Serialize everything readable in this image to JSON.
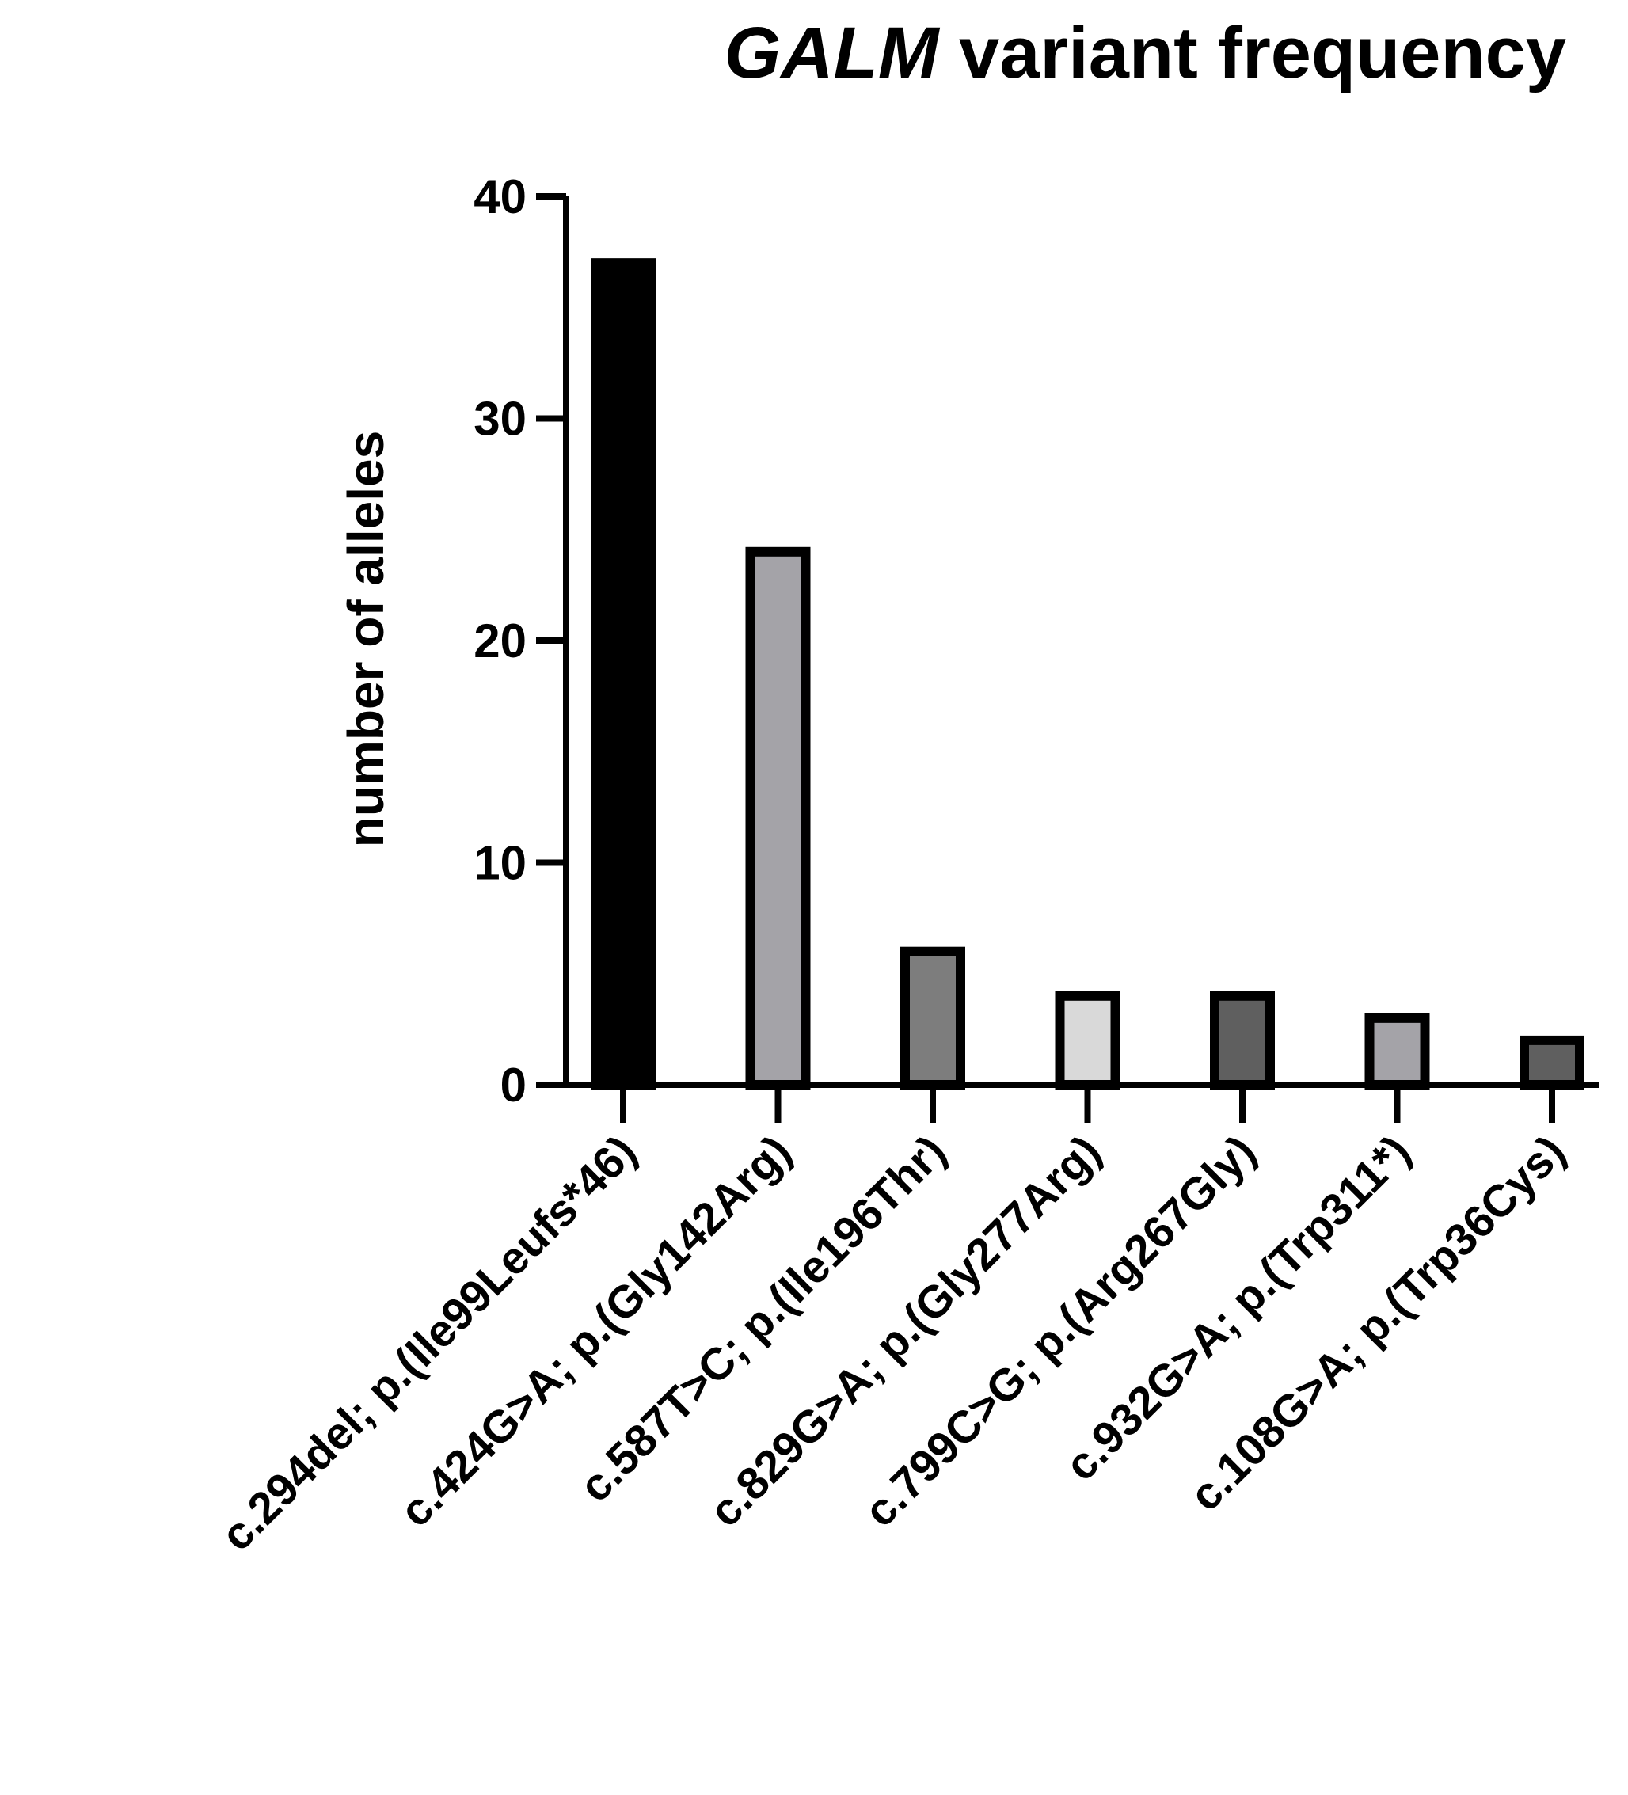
{
  "chart_data": {
    "type": "bar",
    "title_italic": "GALM",
    "title_rest": " variant frequency",
    "ylabel": "number of alleles",
    "xlabel": "",
    "ylim": [
      0,
      40
    ],
    "yticks": [
      0,
      10,
      20,
      30,
      40
    ],
    "ytick_labels": [
      "0",
      "10",
      "20",
      "30",
      "40"
    ],
    "grid": false,
    "legend": false,
    "categories": [
      "c.294del; p.(Ile99Leufs*46)",
      "c.424G>A; p.(Gly142Arg)",
      "c.587T>C; p.(Ile196Thr)",
      "c.829G>A; p.(Gly277Arg)",
      "c.799C>G; p.(Arg267Gly)",
      "c.932G>A; p.(Trp311*)",
      "c.108G>A; p.(Trp36Cys)"
    ],
    "values": [
      37,
      24,
      6,
      4,
      4,
      3,
      2
    ],
    "bar_colors": [
      "#000000",
      "#a4a3a8",
      "#7d7d7d",
      "#d9d9d9",
      "#5f5f5f",
      "#a4a3a8",
      "#5f5f5f"
    ],
    "edge_color": "#000000"
  }
}
